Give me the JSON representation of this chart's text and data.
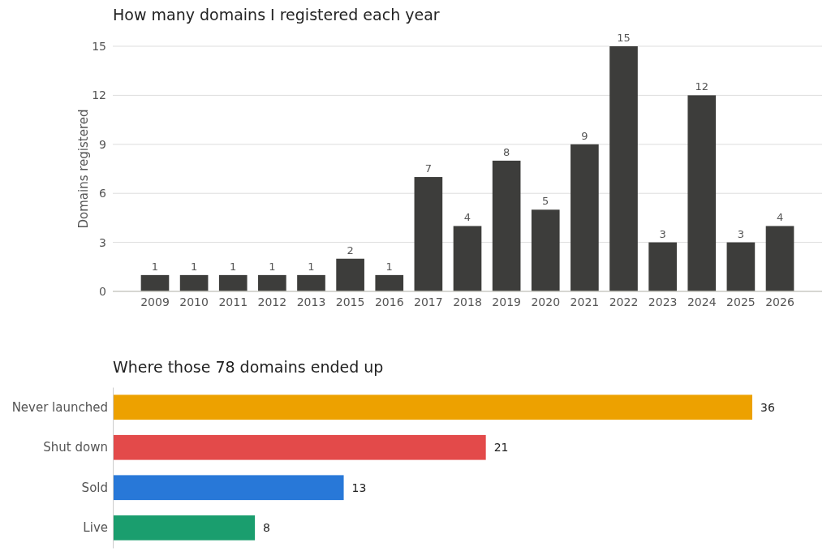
{
  "chart_data": [
    {
      "type": "bar",
      "title": "How many domains I registered each year",
      "ylabel": "Domains registered",
      "categories": [
        "2009",
        "2010",
        "2011",
        "2012",
        "2013",
        "2015",
        "2016",
        "2017",
        "2018",
        "2019",
        "2020",
        "2021",
        "2022",
        "2023",
        "2024",
        "2025",
        "2026"
      ],
      "values": [
        1,
        1,
        1,
        1,
        1,
        2,
        1,
        7,
        4,
        8,
        5,
        9,
        15,
        3,
        12,
        3,
        4
      ],
      "color": "#3d3d3b",
      "ylim": [
        0,
        15
      ],
      "yticks": [
        0,
        3,
        6,
        9,
        12,
        15
      ],
      "grid": "y",
      "data_labels": true
    },
    {
      "type": "bar",
      "orientation": "horizontal",
      "title": "Where those 78 domains ended up",
      "categories": [
        "Never launched",
        "Shut down",
        "Sold",
        "Live"
      ],
      "values": [
        36,
        21,
        13,
        8
      ],
      "colors": [
        "#eda100",
        "#e34a4a",
        "#2878d8",
        "#1a9e6e"
      ],
      "tick_labels": "y",
      "data_labels": true
    }
  ]
}
